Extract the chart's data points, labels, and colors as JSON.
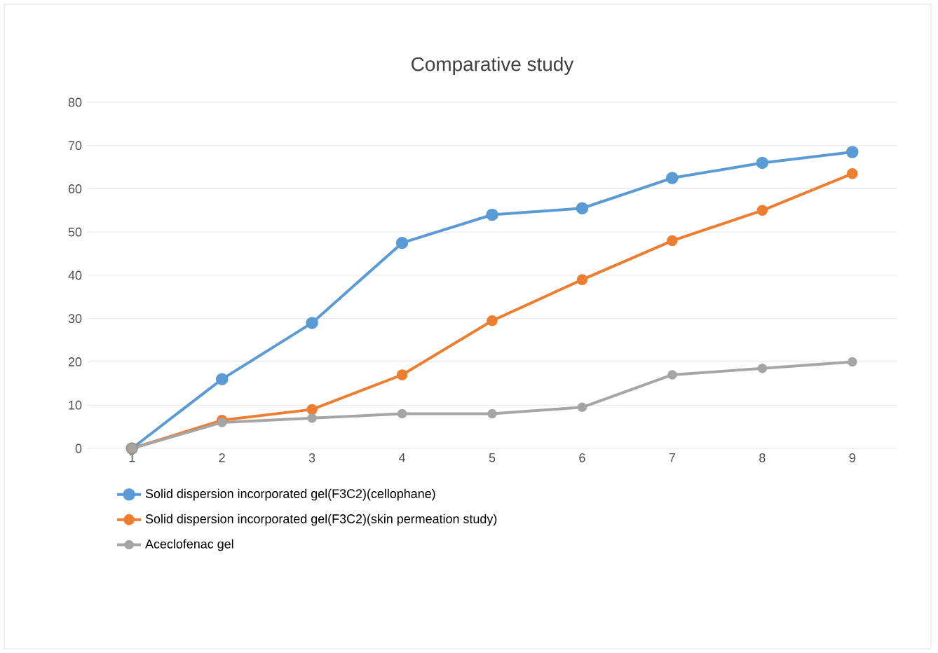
{
  "chart_data": {
    "type": "line",
    "title": "Comparative study",
    "categories": [
      "1",
      "2",
      "3",
      "4",
      "5",
      "6",
      "7",
      "8",
      "9"
    ],
    "series": [
      {
        "name": "Solid dispersion incorporated gel(F3C2)(cellophane)",
        "color": "#5b9bd5",
        "values": [
          0,
          16,
          29,
          47.5,
          54,
          55.5,
          62.5,
          66,
          68.5
        ]
      },
      {
        "name": "Solid dispersion incorporated gel(F3C2)(skin permeation study)",
        "color": "#ed7d31",
        "values": [
          0,
          6.5,
          9,
          17,
          29.5,
          39,
          48,
          55,
          63.5
        ]
      },
      {
        "name": "Aceclofenac gel",
        "color": "#a5a5a5",
        "values": [
          0,
          6,
          7,
          8,
          8,
          9.5,
          17,
          18.5,
          20
        ]
      }
    ],
    "ylim": [
      0,
      80
    ],
    "yticks": [
      0,
      10,
      20,
      30,
      40,
      50,
      60,
      70,
      80
    ],
    "grid": "y",
    "legend": "bottom",
    "marker": "circle",
    "line_style": "solid"
  }
}
